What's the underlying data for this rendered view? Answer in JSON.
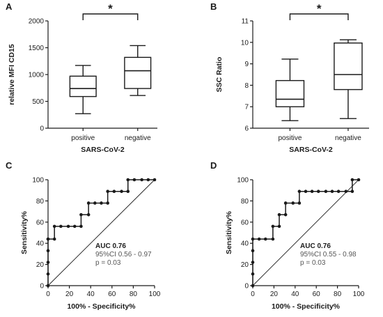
{
  "chart_data": [
    {
      "panel": "A",
      "type": "box",
      "xlabel": "SARS-CoV-2",
      "ylabel": "relative MFI CD15",
      "ylim": [
        0,
        2000
      ],
      "yticks": [
        "0",
        "500",
        "1000",
        "1500",
        "2000"
      ],
      "categories": [
        "positive",
        "negative"
      ],
      "boxes": [
        {
          "min": 270,
          "q1": 590,
          "median": 740,
          "q3": 970,
          "max": 1170
        },
        {
          "min": 610,
          "q1": 740,
          "median": 1070,
          "q3": 1320,
          "max": 1540
        }
      ],
      "significance": "*"
    },
    {
      "panel": "B",
      "type": "box",
      "xlabel": "SARS-CoV-2",
      "ylabel": "SSC Ratio",
      "ylim": [
        6,
        11
      ],
      "yticks": [
        "6",
        "7",
        "8",
        "9",
        "10",
        "11"
      ],
      "categories": [
        "positive",
        "negative"
      ],
      "boxes": [
        {
          "min": 6.35,
          "q1": 7.0,
          "median": 7.35,
          "q3": 8.22,
          "max": 9.22
        },
        {
          "min": 6.45,
          "q1": 7.8,
          "median": 8.5,
          "q3": 9.97,
          "max": 10.12
        }
      ],
      "significance": "*"
    },
    {
      "panel": "C",
      "type": "line",
      "xlabel": "100% - Specificity%",
      "ylabel": "Sensitivity%",
      "xlim": [
        0,
        100
      ],
      "ylim": [
        0,
        100
      ],
      "xticks": [
        "0",
        "20",
        "40",
        "60",
        "80",
        "100"
      ],
      "yticks": [
        "0",
        "20",
        "40",
        "60",
        "80",
        "100"
      ],
      "x": [
        0,
        0,
        0,
        0,
        0,
        0,
        6,
        6,
        12,
        19,
        25,
        31,
        31,
        38,
        38,
        44,
        50,
        56,
        56,
        62,
        69,
        75,
        75,
        81,
        88,
        94,
        100
      ],
      "y": [
        0,
        11,
        22,
        33,
        44,
        44,
        44,
        56,
        56,
        56,
        56,
        56,
        67,
        67,
        78,
        78,
        78,
        78,
        89,
        89,
        89,
        89,
        100,
        100,
        100,
        100,
        100
      ],
      "stats": {
        "auc": "AUC 0.76",
        "ci": "95%CI 0.56 - 0.97",
        "p": "p = 0.03"
      }
    },
    {
      "panel": "D",
      "type": "line",
      "xlabel": "100% - Specificity%",
      "ylabel": "Sensitivity%",
      "xlim": [
        0,
        100
      ],
      "ylim": [
        0,
        100
      ],
      "xticks": [
        "0",
        "20",
        "40",
        "60",
        "80",
        "100"
      ],
      "yticks": [
        "0",
        "20",
        "40",
        "60",
        "80",
        "100"
      ],
      "x": [
        0,
        0,
        0,
        0,
        0,
        6,
        12,
        19,
        19,
        25,
        25,
        31,
        31,
        38,
        44,
        44,
        50,
        56,
        62,
        69,
        75,
        81,
        88,
        94,
        94,
        100
      ],
      "y": [
        0,
        11,
        22,
        33,
        44,
        44,
        44,
        44,
        56,
        56,
        67,
        67,
        78,
        78,
        78,
        89,
        89,
        89,
        89,
        89,
        89,
        89,
        89,
        89,
        100,
        100
      ],
      "stats": {
        "auc": "AUC 0.76",
        "ci": "95%CI 0.55 - 0.98",
        "p": "p = 0.03"
      }
    }
  ]
}
